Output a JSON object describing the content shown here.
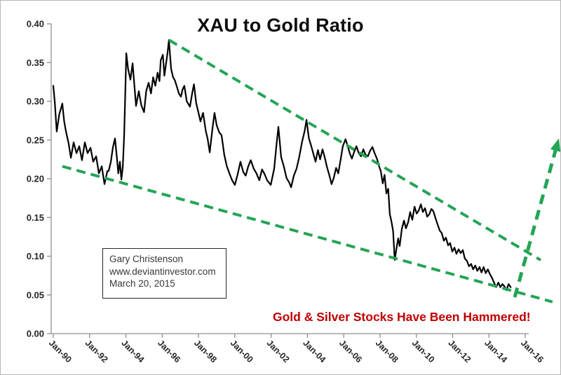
{
  "title": "XAU to Gold Ratio",
  "annotation_box": {
    "author": "Gary Christenson",
    "website": "www.deviantinvestor.com",
    "date": "March 20, 2015"
  },
  "annotation_red": "Gold & Silver Stocks Have Been Hammered!",
  "colors": {
    "series_line": "#000000",
    "trend_green": "#24a455",
    "red_text": "#c00000",
    "axis": "#8f8f8f",
    "tick_label": "#262626"
  },
  "chart_data": {
    "type": "line",
    "title": "XAU to Gold Ratio",
    "xlabel": "",
    "ylabel": "",
    "ylim": [
      0.0,
      0.4
    ],
    "grid": false,
    "legend": "none",
    "y_ticks": [
      {
        "label": "0.00",
        "value": 0.0
      },
      {
        "label": "0.05",
        "value": 0.05
      },
      {
        "label": "0.10",
        "value": 0.1
      },
      {
        "label": "0.15",
        "value": 0.15
      },
      {
        "label": "0.20",
        "value": 0.2
      },
      {
        "label": "0.25",
        "value": 0.25
      },
      {
        "label": "0.30",
        "value": 0.3
      },
      {
        "label": "0.35",
        "value": 0.35
      },
      {
        "label": "0.40",
        "value": 0.4
      }
    ],
    "x_ticks": [
      {
        "label": "Jan-90",
        "year": 1990
      },
      {
        "label": "Jan-92",
        "year": 1992
      },
      {
        "label": "Jan-94",
        "year": 1994
      },
      {
        "label": "Jan-96",
        "year": 1996
      },
      {
        "label": "Jan-98",
        "year": 1998
      },
      {
        "label": "Jan-00",
        "year": 2000
      },
      {
        "label": "Jan-02",
        "year": 2002
      },
      {
        "label": "Jan-04",
        "year": 2004
      },
      {
        "label": "Jan-06",
        "year": 2006
      },
      {
        "label": "Jan-08",
        "year": 2008
      },
      {
        "label": "Jan-10",
        "year": 2010
      },
      {
        "label": "Jan-12",
        "year": 2012
      },
      {
        "label": "Jan-14",
        "year": 2014
      },
      {
        "label": "Jan-16",
        "year": 2016
      }
    ],
    "series": [
      {
        "name": "XAU to Gold Ratio",
        "color": "#000000",
        "points": [
          [
            1990.0,
            0.32
          ],
          [
            1990.08,
            0.299
          ],
          [
            1990.19,
            0.261
          ],
          [
            1990.33,
            0.283
          ],
          [
            1990.5,
            0.297
          ],
          [
            1990.6,
            0.274
          ],
          [
            1990.7,
            0.261
          ],
          [
            1990.85,
            0.245
          ],
          [
            1990.97,
            0.227
          ],
          [
            1991.12,
            0.247
          ],
          [
            1991.28,
            0.233
          ],
          [
            1991.43,
            0.242
          ],
          [
            1991.58,
            0.224
          ],
          [
            1991.74,
            0.247
          ],
          [
            1991.89,
            0.233
          ],
          [
            1992.05,
            0.24
          ],
          [
            1992.2,
            0.222
          ],
          [
            1992.36,
            0.229
          ],
          [
            1992.51,
            0.207
          ],
          [
            1992.67,
            0.216
          ],
          [
            1992.82,
            0.193
          ],
          [
            1992.98,
            0.21
          ],
          [
            1993.05,
            0.21
          ],
          [
            1993.17,
            0.222
          ],
          [
            1993.28,
            0.24
          ],
          [
            1993.4,
            0.252
          ],
          [
            1993.5,
            0.228
          ],
          [
            1993.58,
            0.207
          ],
          [
            1993.67,
            0.222
          ],
          [
            1993.75,
            0.199
          ],
          [
            1993.83,
            0.215
          ],
          [
            1993.9,
            0.255
          ],
          [
            1993.96,
            0.305
          ],
          [
            1994.02,
            0.362
          ],
          [
            1994.12,
            0.342
          ],
          [
            1994.25,
            0.328
          ],
          [
            1994.37,
            0.349
          ],
          [
            1994.56,
            0.294
          ],
          [
            1994.71,
            0.313
          ],
          [
            1994.85,
            0.295
          ],
          [
            1995.0,
            0.286
          ],
          [
            1995.12,
            0.313
          ],
          [
            1995.25,
            0.324
          ],
          [
            1995.38,
            0.31
          ],
          [
            1995.5,
            0.331
          ],
          [
            1995.62,
            0.32
          ],
          [
            1995.75,
            0.337
          ],
          [
            1995.85,
            0.326
          ],
          [
            1995.92,
            0.353
          ],
          [
            1996.04,
            0.36
          ],
          [
            1996.12,
            0.333
          ],
          [
            1996.22,
            0.35
          ],
          [
            1996.3,
            0.364
          ],
          [
            1996.37,
            0.379
          ],
          [
            1996.49,
            0.342
          ],
          [
            1996.6,
            0.331
          ],
          [
            1996.7,
            0.327
          ],
          [
            1996.82,
            0.318
          ],
          [
            1996.92,
            0.31
          ],
          [
            1997.03,
            0.306
          ],
          [
            1997.12,
            0.315
          ],
          [
            1997.22,
            0.32
          ],
          [
            1997.35,
            0.3
          ],
          [
            1997.53,
            0.293
          ],
          [
            1997.65,
            0.31
          ],
          [
            1997.75,
            0.322
          ],
          [
            1997.87,
            0.298
          ],
          [
            1998.0,
            0.285
          ],
          [
            1998.11,
            0.274
          ],
          [
            1998.25,
            0.285
          ],
          [
            1998.4,
            0.262
          ],
          [
            1998.5,
            0.252
          ],
          [
            1998.62,
            0.234
          ],
          [
            1998.77,
            0.265
          ],
          [
            1998.88,
            0.285
          ],
          [
            1999.0,
            0.269
          ],
          [
            1999.14,
            0.26
          ],
          [
            1999.27,
            0.256
          ],
          [
            1999.42,
            0.231
          ],
          [
            1999.56,
            0.216
          ],
          [
            1999.7,
            0.207
          ],
          [
            1999.85,
            0.198
          ],
          [
            2000.0,
            0.192
          ],
          [
            2000.15,
            0.205
          ],
          [
            2000.31,
            0.222
          ],
          [
            2000.46,
            0.209
          ],
          [
            2000.6,
            0.204
          ],
          [
            2000.74,
            0.216
          ],
          [
            2000.88,
            0.224
          ],
          [
            2001.04,
            0.213
          ],
          [
            2001.19,
            0.207
          ],
          [
            2001.35,
            0.198
          ],
          [
            2001.5,
            0.212
          ],
          [
            2001.64,
            0.206
          ],
          [
            2001.78,
            0.198
          ],
          [
            2001.98,
            0.192
          ],
          [
            2002.17,
            0.213
          ],
          [
            2002.3,
            0.245
          ],
          [
            2002.4,
            0.267
          ],
          [
            2002.55,
            0.228
          ],
          [
            2002.7,
            0.216
          ],
          [
            2002.85,
            0.201
          ],
          [
            2003.0,
            0.195
          ],
          [
            2003.1,
            0.189
          ],
          [
            2003.25,
            0.204
          ],
          [
            2003.4,
            0.213
          ],
          [
            2003.55,
            0.228
          ],
          [
            2003.7,
            0.247
          ],
          [
            2003.85,
            0.262
          ],
          [
            2003.95,
            0.276
          ],
          [
            2004.08,
            0.252
          ],
          [
            2004.2,
            0.243
          ],
          [
            2004.33,
            0.232
          ],
          [
            2004.45,
            0.222
          ],
          [
            2004.58,
            0.237
          ],
          [
            2004.7,
            0.225
          ],
          [
            2004.83,
            0.238
          ],
          [
            2004.95,
            0.228
          ],
          [
            2005.08,
            0.215
          ],
          [
            2005.2,
            0.205
          ],
          [
            2005.33,
            0.193
          ],
          [
            2005.45,
            0.201
          ],
          [
            2005.58,
            0.214
          ],
          [
            2005.7,
            0.207
          ],
          [
            2005.83,
            0.225
          ],
          [
            2005.95,
            0.242
          ],
          [
            2006.1,
            0.251
          ],
          [
            2006.22,
            0.242
          ],
          [
            2006.33,
            0.233
          ],
          [
            2006.45,
            0.226
          ],
          [
            2006.58,
            0.235
          ],
          [
            2006.7,
            0.242
          ],
          [
            2006.83,
            0.233
          ],
          [
            2006.95,
            0.229
          ],
          [
            2007.08,
            0.238
          ],
          [
            2007.2,
            0.231
          ],
          [
            2007.33,
            0.229
          ],
          [
            2007.45,
            0.236
          ],
          [
            2007.58,
            0.241
          ],
          [
            2007.7,
            0.233
          ],
          [
            2007.83,
            0.226
          ],
          [
            2007.95,
            0.216
          ],
          [
            2008.04,
            0.21
          ],
          [
            2008.15,
            0.194
          ],
          [
            2008.25,
            0.205
          ],
          [
            2008.35,
            0.181
          ],
          [
            2008.45,
            0.187
          ],
          [
            2008.54,
            0.154
          ],
          [
            2008.63,
            0.145
          ],
          [
            2008.72,
            0.132
          ],
          [
            2008.81,
            0.095
          ],
          [
            2008.9,
            0.109
          ],
          [
            2009.0,
            0.123
          ],
          [
            2009.08,
            0.113
          ],
          [
            2009.2,
            0.135
          ],
          [
            2009.32,
            0.146
          ],
          [
            2009.43,
            0.136
          ],
          [
            2009.55,
            0.144
          ],
          [
            2009.66,
            0.157
          ],
          [
            2009.78,
            0.147
          ],
          [
            2009.9,
            0.164
          ],
          [
            2010.02,
            0.155
          ],
          [
            2010.13,
            0.159
          ],
          [
            2010.25,
            0.167
          ],
          [
            2010.36,
            0.157
          ],
          [
            2010.48,
            0.162
          ],
          [
            2010.6,
            0.151
          ],
          [
            2010.71,
            0.154
          ],
          [
            2010.83,
            0.161
          ],
          [
            2010.94,
            0.158
          ],
          [
            2011.06,
            0.149
          ],
          [
            2011.17,
            0.141
          ],
          [
            2011.29,
            0.133
          ],
          [
            2011.4,
            0.13
          ],
          [
            2011.52,
            0.12
          ],
          [
            2011.63,
            0.124
          ],
          [
            2011.75,
            0.114
          ],
          [
            2011.86,
            0.117
          ],
          [
            2011.98,
            0.106
          ],
          [
            2012.1,
            0.111
          ],
          [
            2012.21,
            0.103
          ],
          [
            2012.33,
            0.109
          ],
          [
            2012.44,
            0.104
          ],
          [
            2012.56,
            0.108
          ],
          [
            2012.67,
            0.097
          ],
          [
            2012.79,
            0.094
          ],
          [
            2012.9,
            0.087
          ],
          [
            2013.02,
            0.09
          ],
          [
            2013.13,
            0.083
          ],
          [
            2013.25,
            0.088
          ],
          [
            2013.36,
            0.081
          ],
          [
            2013.48,
            0.086
          ],
          [
            2013.59,
            0.079
          ],
          [
            2013.71,
            0.086
          ],
          [
            2013.82,
            0.078
          ],
          [
            2013.94,
            0.083
          ],
          [
            2014.05,
            0.077
          ],
          [
            2014.17,
            0.072
          ],
          [
            2014.28,
            0.066
          ],
          [
            2014.4,
            0.06
          ],
          [
            2014.52,
            0.066
          ],
          [
            2014.63,
            0.06
          ],
          [
            2014.74,
            0.064
          ],
          [
            2014.86,
            0.061
          ],
          [
            2014.97,
            0.056
          ],
          [
            2015.08,
            0.064
          ],
          [
            2015.2,
            0.06
          ]
        ]
      }
    ],
    "trendlines": [
      {
        "name": "upper-channel-resistance",
        "style": "dashed",
        "color": "#24a455",
        "from": [
          1996.38,
          0.379
        ],
        "to": [
          2016.85,
          0.095
        ]
      },
      {
        "name": "lower-channel-support",
        "style": "dashed",
        "color": "#24a455",
        "from": [
          1990.5,
          0.216
        ],
        "to": [
          2017.5,
          0.041
        ]
      }
    ],
    "arrow": {
      "name": "projected-rebound-arrow",
      "style": "dashed",
      "color": "#24a455",
      "from": [
        2015.42,
        0.047
      ],
      "to": [
        2017.85,
        0.252
      ]
    }
  }
}
